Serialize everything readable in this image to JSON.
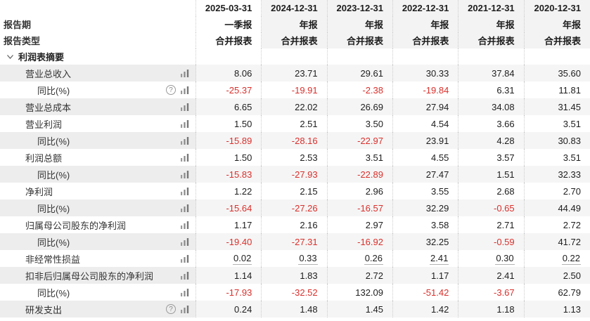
{
  "colors": {
    "accent_orange": "#ff8200",
    "negative_red": "#d9302c",
    "stripe_label_bg": "#ededed",
    "stripe_value_bg": "#f5f5f5",
    "header_shade_bg": "#f3f3f3"
  },
  "icons": {
    "help_glyph": "?",
    "bar_chart": "bar-chart-icon",
    "chevron": "chevron-down-icon"
  },
  "table": {
    "columns": [
      "2025-03-31",
      "2024-12-31",
      "2023-12-31",
      "2022-12-31",
      "2021-12-31",
      "2020-12-31"
    ],
    "report_period": {
      "label": "报告期",
      "values": [
        "一季报",
        "年报",
        "年报",
        "年报",
        "年报",
        "年报"
      ]
    },
    "report_type": {
      "label": "报告类型",
      "values": [
        "合并报表",
        "合并报表",
        "合并报表",
        "合并报表",
        "合并报表",
        "合并报表"
      ]
    },
    "section": {
      "label": "利润表摘要"
    },
    "rows": [
      {
        "label": "营业总收入",
        "indent": 1,
        "has_help": false,
        "underline": false,
        "values": [
          "8.06",
          "23.71",
          "29.61",
          "30.33",
          "37.84",
          "35.60"
        ]
      },
      {
        "label": "同比(%)",
        "indent": 2,
        "has_help": true,
        "underline": false,
        "values": [
          "-25.37",
          "-19.91",
          "-2.38",
          "-19.84",
          "6.31",
          "11.81"
        ]
      },
      {
        "label": "营业总成本",
        "indent": 1,
        "has_help": false,
        "underline": false,
        "values": [
          "6.65",
          "22.02",
          "26.69",
          "27.94",
          "34.08",
          "31.45"
        ]
      },
      {
        "label": "营业利润",
        "indent": 1,
        "has_help": false,
        "underline": false,
        "values": [
          "1.50",
          "2.51",
          "3.50",
          "4.54",
          "3.66",
          "3.51"
        ]
      },
      {
        "label": "同比(%)",
        "indent": 2,
        "has_help": false,
        "underline": false,
        "values": [
          "-15.89",
          "-28.16",
          "-22.97",
          "23.91",
          "4.28",
          "30.83"
        ]
      },
      {
        "label": "利润总额",
        "indent": 1,
        "has_help": false,
        "underline": false,
        "values": [
          "1.50",
          "2.53",
          "3.51",
          "4.55",
          "3.57",
          "3.51"
        ]
      },
      {
        "label": "同比(%)",
        "indent": 2,
        "has_help": false,
        "underline": false,
        "values": [
          "-15.83",
          "-27.93",
          "-22.89",
          "27.47",
          "1.51",
          "32.33"
        ]
      },
      {
        "label": "净利润",
        "indent": 1,
        "has_help": false,
        "underline": false,
        "values": [
          "1.22",
          "2.15",
          "2.96",
          "3.55",
          "2.68",
          "2.70"
        ]
      },
      {
        "label": "同比(%)",
        "indent": 2,
        "has_help": false,
        "underline": false,
        "values": [
          "-15.64",
          "-27.26",
          "-16.57",
          "32.29",
          "-0.65",
          "44.49"
        ]
      },
      {
        "label": "归属母公司股东的净利润",
        "indent": 1,
        "has_help": false,
        "underline": false,
        "values": [
          "1.17",
          "2.16",
          "2.97",
          "3.58",
          "2.71",
          "2.72"
        ]
      },
      {
        "label": "同比(%)",
        "indent": 2,
        "has_help": false,
        "underline": false,
        "values": [
          "-19.40",
          "-27.31",
          "-16.92",
          "32.25",
          "-0.59",
          "41.72"
        ]
      },
      {
        "label": "非经常性损益",
        "indent": 1,
        "has_help": false,
        "underline": true,
        "values": [
          "0.02",
          "0.33",
          "0.26",
          "2.41",
          "0.30",
          "0.22"
        ]
      },
      {
        "label": "扣非后归属母公司股东的净利润",
        "indent": 1,
        "has_help": false,
        "underline": false,
        "values": [
          "1.14",
          "1.83",
          "2.72",
          "1.17",
          "2.41",
          "2.50"
        ]
      },
      {
        "label": "同比(%)",
        "indent": 2,
        "has_help": false,
        "underline": false,
        "values": [
          "-17.93",
          "-32.52",
          "132.09",
          "-51.42",
          "-3.67",
          "62.79"
        ]
      },
      {
        "label": "研发支出",
        "indent": 1,
        "has_help": true,
        "underline": false,
        "values": [
          "0.24",
          "1.48",
          "1.45",
          "1.42",
          "1.18",
          "1.13"
        ]
      }
    ]
  }
}
